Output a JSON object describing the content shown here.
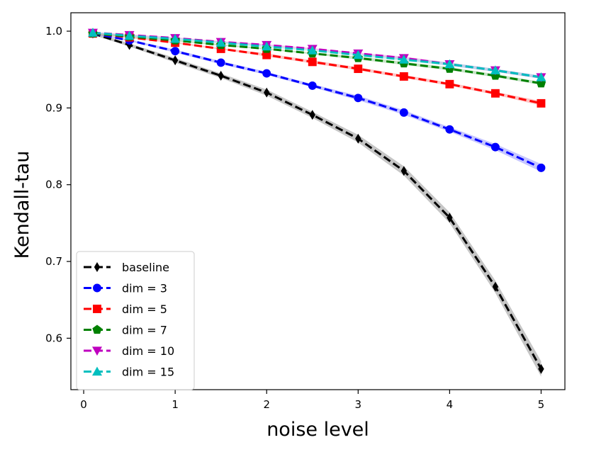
{
  "chart_data": {
    "type": "line",
    "title": "",
    "xlabel": "noise level",
    "ylabel": "Kendall-tau",
    "xlim": [
      -0.14,
      5.26
    ],
    "ylim": [
      0.533,
      1.024
    ],
    "xticks": [
      0,
      1,
      2,
      3,
      4,
      5
    ],
    "xtick_labels": [
      "0",
      "1",
      "2",
      "3",
      "4",
      "5"
    ],
    "yticks": [
      0.6,
      0.7,
      0.8,
      0.9,
      1.0
    ],
    "ytick_labels": [
      "0.6",
      "0.7",
      "0.8",
      "0.9",
      "1.0"
    ],
    "grid": false,
    "legend_position": "lower-left",
    "x": [
      0.1,
      0.5,
      1.0,
      1.5,
      2.0,
      2.5,
      3.0,
      3.5,
      4.0,
      4.5,
      5.0
    ],
    "series": [
      {
        "name": "baseline",
        "color": "#000000",
        "marker": "thin-diamond",
        "band_color": "#808080",
        "values": [
          0.997,
          0.982,
          0.962,
          0.942,
          0.92,
          0.891,
          0.86,
          0.818,
          0.757,
          0.667,
          0.56
        ],
        "band": [
          0.002,
          0.002,
          0.003,
          0.003,
          0.004,
          0.004,
          0.005,
          0.006,
          0.007,
          0.008,
          0.01
        ]
      },
      {
        "name": "dim = 3",
        "color": "#0000ff",
        "marker": "circle",
        "band_color": "#8080ff",
        "values": [
          0.997,
          0.988,
          0.974,
          0.959,
          0.945,
          0.929,
          0.913,
          0.894,
          0.872,
          0.849,
          0.822
        ],
        "band": [
          0.001,
          0.001,
          0.002,
          0.002,
          0.002,
          0.002,
          0.003,
          0.003,
          0.003,
          0.004,
          0.005
        ]
      },
      {
        "name": "dim = 5",
        "color": "#ff0000",
        "marker": "square",
        "band_color": "#ff8080",
        "values": [
          0.997,
          0.992,
          0.985,
          0.977,
          0.969,
          0.96,
          0.951,
          0.941,
          0.931,
          0.919,
          0.906
        ],
        "band": [
          0.001,
          0.001,
          0.001,
          0.001,
          0.002,
          0.002,
          0.002,
          0.002,
          0.002,
          0.002,
          0.003
        ]
      },
      {
        "name": "dim = 7",
        "color": "#008000",
        "marker": "pentagon",
        "band_color": "#80c080",
        "values": [
          0.997,
          0.993,
          0.988,
          0.982,
          0.977,
          0.971,
          0.965,
          0.958,
          0.951,
          0.942,
          0.932
        ],
        "band": [
          0.001,
          0.001,
          0.001,
          0.001,
          0.001,
          0.001,
          0.002,
          0.002,
          0.002,
          0.002,
          0.002
        ]
      },
      {
        "name": "dim = 10",
        "color": "#bf00bf",
        "marker": "triangle-down",
        "band_color": "#e080e0",
        "values": [
          0.998,
          0.995,
          0.991,
          0.986,
          0.982,
          0.977,
          0.971,
          0.965,
          0.957,
          0.949,
          0.94
        ],
        "band": [
          0.001,
          0.001,
          0.001,
          0.001,
          0.001,
          0.001,
          0.001,
          0.002,
          0.002,
          0.002,
          0.002
        ]
      },
      {
        "name": "dim = 15",
        "color": "#00bfbf",
        "marker": "triangle-up",
        "band_color": "#80e0e0",
        "values": [
          0.998,
          0.994,
          0.99,
          0.985,
          0.98,
          0.975,
          0.969,
          0.963,
          0.957,
          0.949,
          0.94
        ],
        "band": [
          0.001,
          0.001,
          0.001,
          0.001,
          0.001,
          0.001,
          0.001,
          0.002,
          0.002,
          0.002,
          0.002
        ]
      }
    ]
  }
}
